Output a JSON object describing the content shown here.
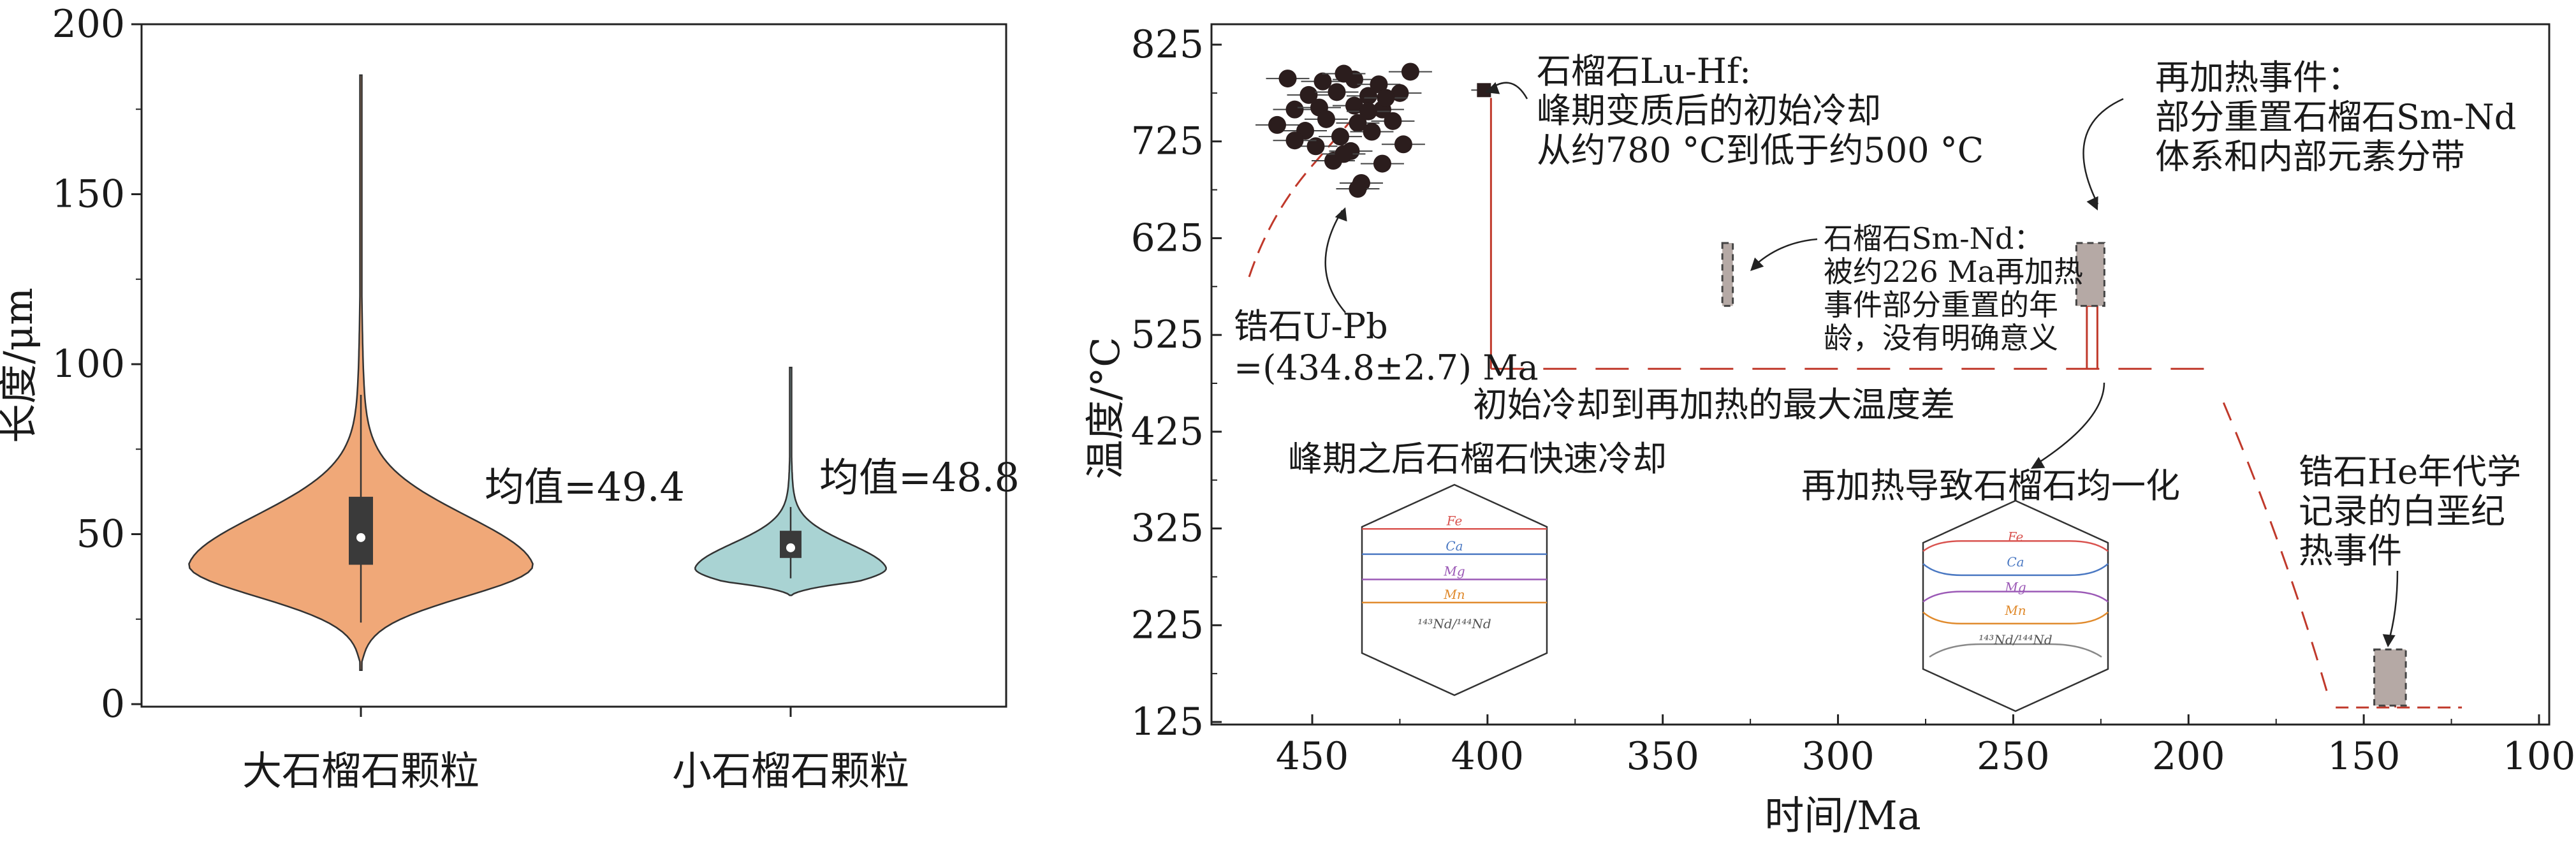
{
  "chart_data": [
    {
      "type": "violin",
      "ylabel": "长度/μm",
      "ylim": [
        0,
        200
      ],
      "yticks": [
        0,
        50,
        100,
        150,
        200
      ],
      "categories": [
        "大石榴石颗粒",
        "小石榴石颗粒"
      ],
      "series": [
        {
          "name": "大石榴石颗粒",
          "color": "#f0a878",
          "min": 10,
          "max": 185,
          "q1": 41,
          "q3": 61,
          "median": 49,
          "whisker_low": 24,
          "whisker_high": 91,
          "annotation": "均值=49.4"
        },
        {
          "name": "小石榴石颗粒",
          "color": "#a9d3d3",
          "min": 32,
          "max": 99,
          "q1": 43,
          "q3": 51,
          "median": 46,
          "whisker_low": 37,
          "whisker_high": 58,
          "annotation": "均值=48.8"
        }
      ]
    },
    {
      "type": "scatter",
      "xlabel": "时间/Ma",
      "ylabel": "温度/°C",
      "xlim": [
        475,
        100
      ],
      "ylim": [
        125,
        845
      ],
      "xticks": [
        450,
        400,
        350,
        300,
        250,
        200,
        150,
        100
      ],
      "yticks": [
        125,
        225,
        325,
        425,
        525,
        625,
        725,
        825
      ],
      "zircon_points": [
        {
          "x": 457,
          "y": 790
        },
        {
          "x": 447,
          "y": 787
        },
        {
          "x": 438,
          "y": 789
        },
        {
          "x": 431,
          "y": 784
        },
        {
          "x": 422,
          "y": 797
        },
        {
          "x": 451,
          "y": 773
        },
        {
          "x": 443,
          "y": 776
        },
        {
          "x": 434,
          "y": 772
        },
        {
          "x": 425,
          "y": 775
        },
        {
          "x": 455,
          "y": 758
        },
        {
          "x": 448,
          "y": 760
        },
        {
          "x": 438,
          "y": 762
        },
        {
          "x": 430,
          "y": 758
        },
        {
          "x": 446,
          "y": 748
        },
        {
          "x": 437,
          "y": 744
        },
        {
          "x": 427,
          "y": 746
        },
        {
          "x": 460,
          "y": 742
        },
        {
          "x": 452,
          "y": 736
        },
        {
          "x": 442,
          "y": 730
        },
        {
          "x": 433,
          "y": 735
        },
        {
          "x": 449,
          "y": 720
        },
        {
          "x": 439,
          "y": 715
        },
        {
          "x": 424,
          "y": 722
        },
        {
          "x": 444,
          "y": 705
        },
        {
          "x": 430,
          "y": 702
        },
        {
          "x": 436,
          "y": 682
        },
        {
          "x": 437,
          "y": 676
        },
        {
          "x": 441,
          "y": 712
        },
        {
          "x": 455,
          "y": 726
        },
        {
          "x": 429,
          "y": 770
        },
        {
          "x": 441,
          "y": 795
        },
        {
          "x": 434,
          "y": 756
        }
      ],
      "lu_hf_point": {
        "x": 401,
        "y": 778
      },
      "boxes": [
        {
          "name": "石榴石Sm-Nd",
          "x0": 333,
          "x1": 330,
          "y0": 555,
          "y1": 620
        },
        {
          "name": "再加热事件",
          "x0": 232,
          "x1": 224,
          "y0": 555,
          "y1": 620
        },
        {
          "name": "锆石He",
          "x0": 147,
          "x1": 138,
          "y0": 142,
          "y1": 200
        }
      ],
      "annotations": {
        "lu_hf": [
          "石榴石Lu-Hf:",
          "峰期变质后的初始冷却",
          "从约780 °C到低于约500 °C"
        ],
        "reheat": [
          "再加热事件：",
          "部分重置石榴石Sm-Nd",
          "体系和内部元素分带"
        ],
        "sm_nd": [
          "石榴石Sm-Nd：",
          "被约226 Ma再加热",
          "事件部分重置的年",
          "龄，没有明确意义"
        ],
        "zircon_upb": [
          "锆石U-Pb",
          "=(434.8±2.7) Ma"
        ],
        "max_temp_diff": "初始冷却到再加热的最大温度差",
        "rapid_cooling": "峰期之后石榴石快速冷却",
        "homogenize": "再加热导致石榴石均一化",
        "he_event": [
          "锆石He年代学",
          "记录的白垩纪",
          "热事件"
        ]
      },
      "hex_left_labels": [
        "Fe",
        "Ca",
        "Mg",
        "Mn",
        "¹⁴³Nd/¹⁴⁴Nd"
      ],
      "hex_right_labels": [
        "Fe",
        "Ca",
        "Mg",
        "Mn",
        "¹⁴³Nd/¹⁴⁴Nd"
      ],
      "hex_line_colors": [
        "#d9534f",
        "#4a78c2",
        "#9b59b6",
        "#e08a2c",
        "#888888"
      ],
      "path_color": "#c0392b",
      "box_fill": "#b5a9a5"
    }
  ]
}
